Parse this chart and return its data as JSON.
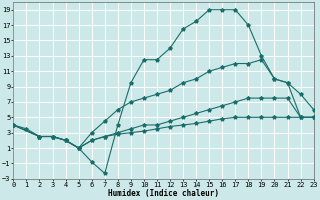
{
  "bg_color": "#cce8e8",
  "grid_color": "#ffffff",
  "line_color": "#1a6e6a",
  "xlabel": "Humidex (Indice chaleur)",
  "xlim": [
    0,
    23
  ],
  "ylim": [
    -3,
    20
  ],
  "xtick_vals": [
    0,
    1,
    2,
    3,
    4,
    5,
    6,
    7,
    8,
    9,
    10,
    11,
    12,
    13,
    14,
    15,
    16,
    17,
    18,
    19,
    20,
    21,
    22,
    23
  ],
  "ytick_vals": [
    -3,
    -1,
    1,
    3,
    5,
    7,
    9,
    11,
    13,
    15,
    17,
    19
  ],
  "line1_x": [
    0,
    1,
    2,
    3,
    4,
    5,
    6,
    7,
    8,
    9,
    10,
    11,
    12,
    13,
    14,
    15,
    16,
    17,
    18,
    19,
    20,
    21,
    22,
    23
  ],
  "line1_y": [
    4,
    3.5,
    2.5,
    2.5,
    2,
    1,
    -0.8,
    -2.3,
    4,
    9.5,
    12.5,
    12.5,
    14,
    16.5,
    17.5,
    19,
    19,
    19,
    17,
    13,
    10,
    9.5,
    8,
    6
  ],
  "line2_x": [
    0,
    2,
    3,
    4,
    5,
    6,
    7,
    8,
    9,
    10,
    11,
    12,
    13,
    14,
    15,
    16,
    17,
    18,
    19,
    20,
    21,
    22,
    23
  ],
  "line2_y": [
    4,
    2.5,
    2.5,
    2,
    1,
    3,
    4.5,
    6,
    7,
    7.5,
    8,
    8.5,
    9.5,
    10,
    11,
    11.5,
    12,
    12,
    12.5,
    10,
    9.5,
    5,
    5
  ],
  "line3_x": [
    0,
    2,
    3,
    4,
    5,
    6,
    7,
    8,
    9,
    10,
    11,
    12,
    13,
    14,
    15,
    16,
    17,
    18,
    19,
    20,
    21,
    22,
    23
  ],
  "line3_y": [
    4,
    2.5,
    2.5,
    2,
    1,
    2,
    2.5,
    3,
    3.5,
    4,
    4,
    4.5,
    5,
    5.5,
    6,
    6.5,
    7,
    7.5,
    7.5,
    7.5,
    7.5,
    5,
    5
  ],
  "line4_x": [
    0,
    2,
    3,
    4,
    5,
    6,
    7,
    8,
    9,
    10,
    11,
    12,
    13,
    14,
    15,
    16,
    17,
    18,
    19,
    20,
    21,
    22,
    23
  ],
  "line4_y": [
    4,
    2.5,
    2.5,
    2,
    1,
    2,
    2.5,
    2.8,
    3,
    3.2,
    3.5,
    3.8,
    4,
    4.2,
    4.5,
    4.8,
    5,
    5,
    5,
    5,
    5,
    5,
    5
  ]
}
